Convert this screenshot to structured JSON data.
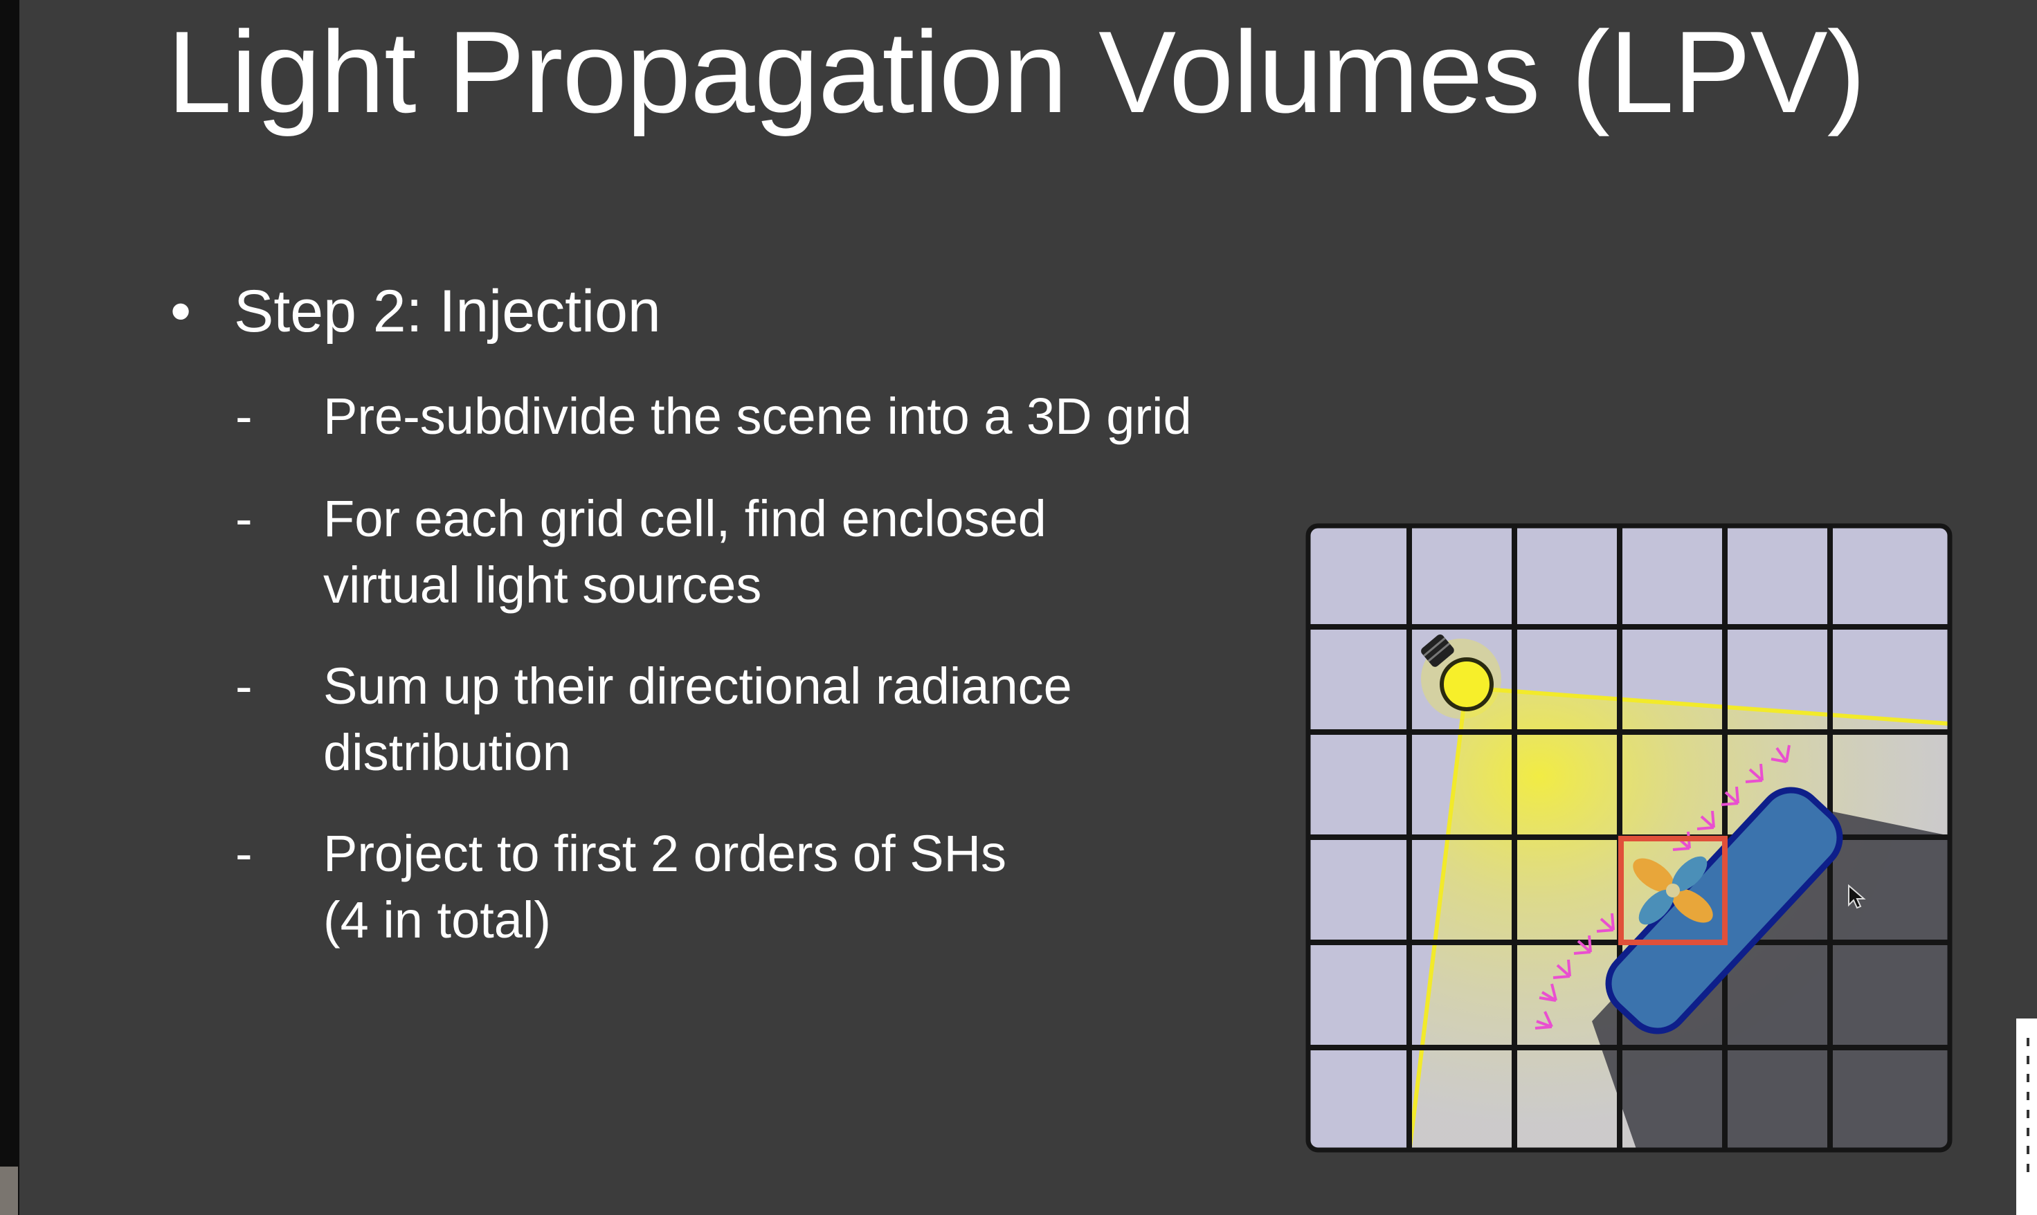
{
  "slide": {
    "title": "Light Propagation Volumes (LPV)",
    "bullet": "Step 2: Injection",
    "bullet_marker": "•",
    "dash_marker": "-",
    "sub_items": [
      {
        "line1": "Pre-subdivide the scene into a 3D grid",
        "line2": ""
      },
      {
        "line1": "For each grid cell, find enclosed",
        "line2": "virtual light sources"
      },
      {
        "line1": "Sum up their directional radiance",
        "line2": "distribution"
      },
      {
        "line1": "Project to first 2 orders of SHs",
        "line2": "(4 in total)"
      }
    ]
  },
  "figure": {
    "grid_columns": 6,
    "grid_rows": 6,
    "colors": {
      "grid_bg": "#c3c2d9",
      "grid_lines": "#151515",
      "light": "#f2ea2a",
      "blocker": "#3b73ad",
      "blocker_outline": "#0e1f8a",
      "highlight_cell": "#e0503a",
      "vpl_arrows": "#e94fd0",
      "shadow": "#4a4a50"
    },
    "icons": [
      "light-bulb-icon",
      "sh-lobes-icon",
      "virtual-light-arrows-icon"
    ]
  },
  "colors": {
    "slide_bg": "#3c3c3c",
    "text": "#ffffff"
  }
}
